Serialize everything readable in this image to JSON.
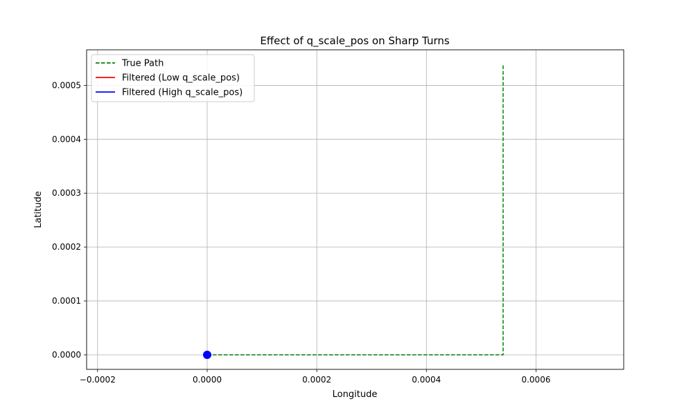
{
  "chart_data": {
    "type": "line",
    "title": "Effect of q_scale_pos on Sharp Turns",
    "xlabel": "Longitude",
    "ylabel": "Latitude",
    "xlim": [
      -0.00022,
      0.00076
    ],
    "ylim": [
      -2.7e-05,
      0.000566
    ],
    "xticks": [
      -0.0002,
      0.0,
      0.0002,
      0.0004,
      0.0006
    ],
    "xtick_labels": [
      "−0.0002",
      "0.0000",
      "0.0002",
      "0.0004",
      "0.0006"
    ],
    "yticks": [
      0.0,
      0.0001,
      0.0002,
      0.0003,
      0.0004,
      0.0005
    ],
    "ytick_labels": [
      "0.0000",
      "0.0001",
      "0.0002",
      "0.0003",
      "0.0004",
      "0.0005"
    ],
    "grid": true,
    "legend_position": "upper-left",
    "series": [
      {
        "name": "True Path",
        "color": "#008000",
        "style": "dashed",
        "x": [
          0.0,
          0.00054,
          0.00054
        ],
        "y": [
          0.0,
          0.0,
          0.00054
        ]
      },
      {
        "name": "Filtered (Low q_scale_pos)",
        "color": "#ff0000",
        "style": "solid",
        "x": [
          0.0
        ],
        "y": [
          0.0
        ]
      },
      {
        "name": "Filtered (High q_scale_pos)",
        "color": "#0000ff",
        "style": "solid",
        "x": [
          0.0
        ],
        "y": [
          0.0
        ]
      }
    ],
    "markers": [
      {
        "x": 0.0,
        "y": 0.0,
        "color": "#0000ff"
      }
    ]
  }
}
